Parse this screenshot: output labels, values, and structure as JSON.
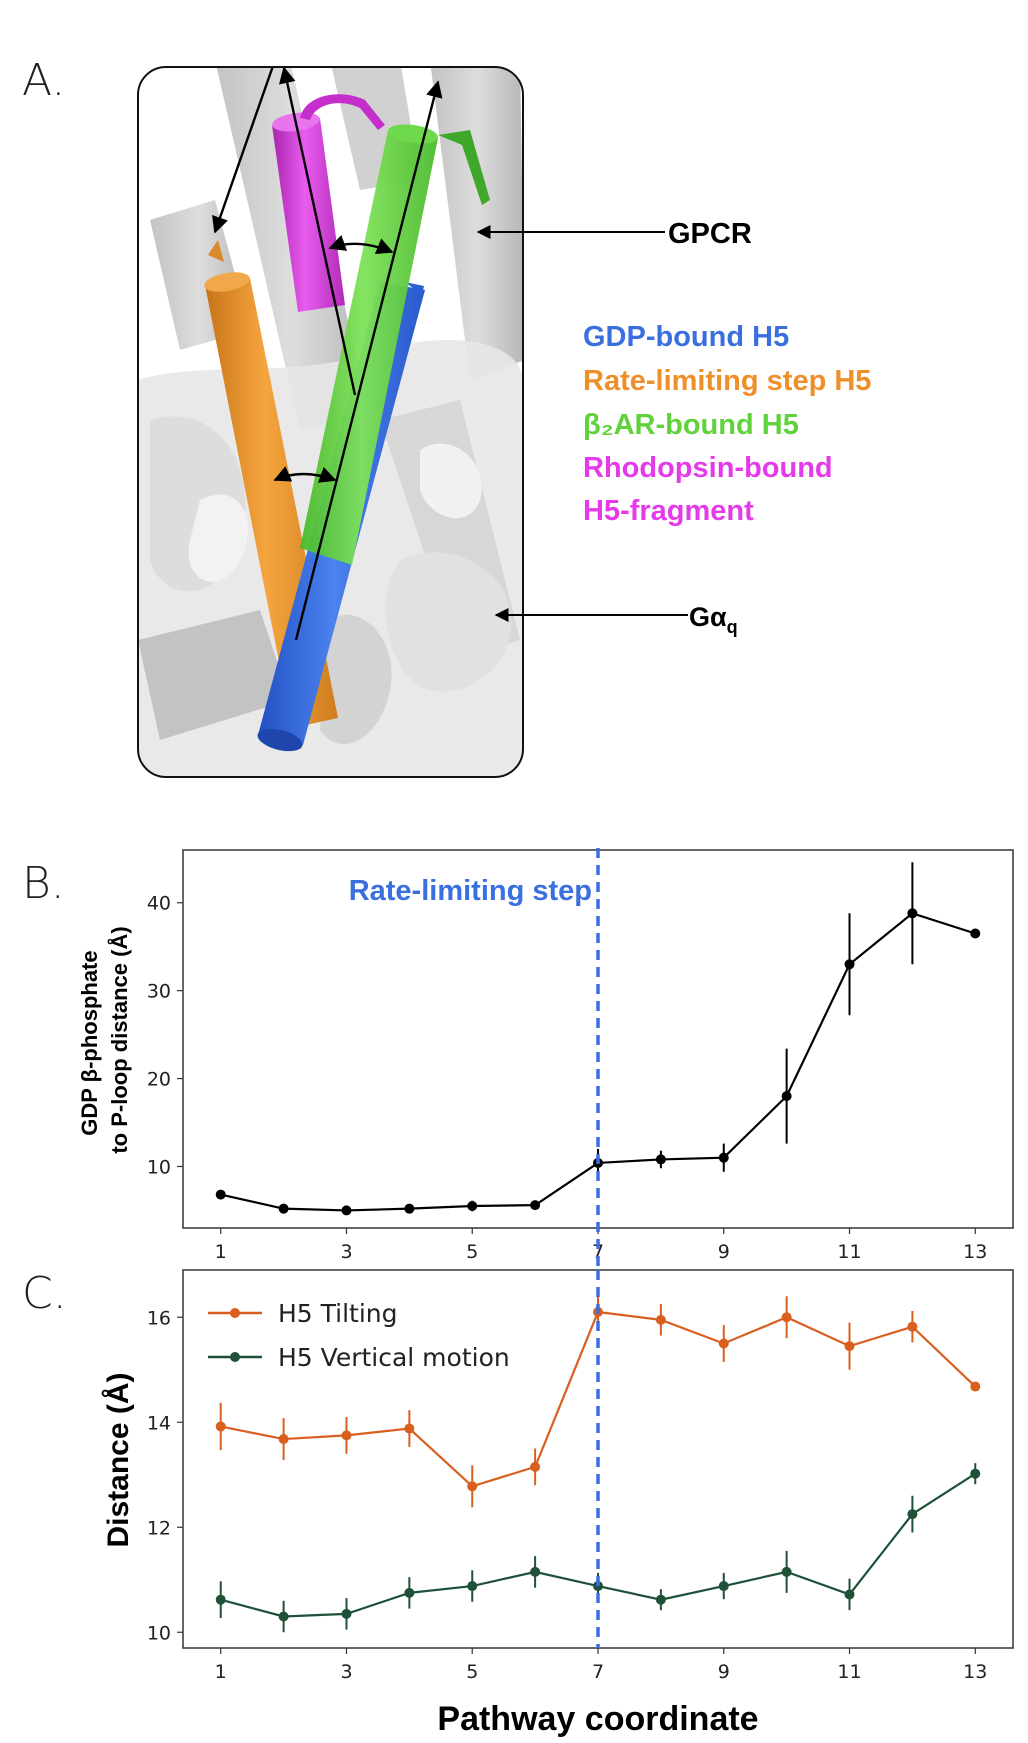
{
  "panels": {
    "a": {
      "letter": "A."
    },
    "b": {
      "letter": "B."
    },
    "c": {
      "letter": "C."
    }
  },
  "structure": {
    "gpcr_label": "GPCR",
    "galpha_label": "Gα",
    "galpha_subscript": "q",
    "legend": [
      {
        "text": "GDP-bound H5",
        "color": "#3a6fe0"
      },
      {
        "text": "Rate-limiting step H5",
        "color": "#ef8f2a"
      },
      {
        "text": "β₂AR-bound H5",
        "color": "#5fd23c"
      },
      {
        "text": "Rhodopsin-bound",
        "color": "#e43ae9"
      },
      {
        "text": "H5-fragment",
        "color": "#e43ae9"
      }
    ]
  },
  "chart_data": [
    {
      "type": "line",
      "title": "",
      "xlabel": "",
      "ylabel_line1": "GDP β-phosphate",
      "ylabel_line2": "to P-loop distance (Å)",
      "x": [
        1,
        2,
        3,
        4,
        5,
        6,
        7,
        8,
        9,
        10,
        11,
        12,
        13
      ],
      "xticks": [
        1,
        3,
        5,
        7,
        9,
        11,
        13
      ],
      "yticks": [
        10,
        20,
        30,
        40
      ],
      "xlim": [
        0.4,
        13.6
      ],
      "ylim": [
        3,
        46
      ],
      "series": [
        {
          "color": "#000000",
          "values": [
            6.8,
            5.2,
            5.0,
            5.2,
            5.5,
            5.6,
            10.4,
            10.8,
            11.0,
            18.0,
            33.0,
            38.8,
            36.5
          ],
          "errors": [
            0.3,
            0.3,
            0.3,
            0.3,
            0.6,
            0.4,
            1.6,
            1.0,
            1.6,
            5.4,
            5.8,
            5.8,
            0.3
          ]
        }
      ],
      "annotation": {
        "text": "Rate-limiting step",
        "x": 7,
        "color": "#3a6fe0"
      }
    },
    {
      "type": "line",
      "title": "",
      "xlabel": "Pathway coordinate",
      "ylabel": "Distance (Å)",
      "x": [
        1,
        2,
        3,
        4,
        5,
        6,
        7,
        8,
        9,
        10,
        11,
        12,
        13
      ],
      "xticks": [
        1,
        3,
        5,
        7,
        9,
        11,
        13
      ],
      "yticks": [
        10,
        12,
        14,
        16
      ],
      "xlim": [
        0.4,
        13.6
      ],
      "ylim": [
        9.7,
        16.9
      ],
      "legend_position": "top-left",
      "series": [
        {
          "name": "H5 Tilting",
          "color": "#d95f1f",
          "values": [
            13.92,
            13.68,
            13.75,
            13.88,
            12.78,
            13.15,
            16.1,
            15.95,
            15.5,
            16.0,
            15.45,
            15.82,
            14.68
          ],
          "errors": [
            0.45,
            0.4,
            0.35,
            0.35,
            0.4,
            0.35,
            0.35,
            0.3,
            0.35,
            0.4,
            0.45,
            0.3,
            0.05
          ]
        },
        {
          "name": "H5 Vertical motion",
          "color": "#1f5138",
          "values": [
            10.62,
            10.3,
            10.35,
            10.75,
            10.88,
            11.15,
            10.88,
            10.62,
            10.88,
            11.15,
            10.72,
            12.25,
            13.02
          ],
          "errors": [
            0.35,
            0.3,
            0.3,
            0.3,
            0.3,
            0.3,
            0.25,
            0.2,
            0.25,
            0.4,
            0.3,
            0.35,
            0.2
          ]
        }
      ],
      "annotation": {
        "x": 7,
        "color": "#3a6fe0"
      }
    }
  ]
}
